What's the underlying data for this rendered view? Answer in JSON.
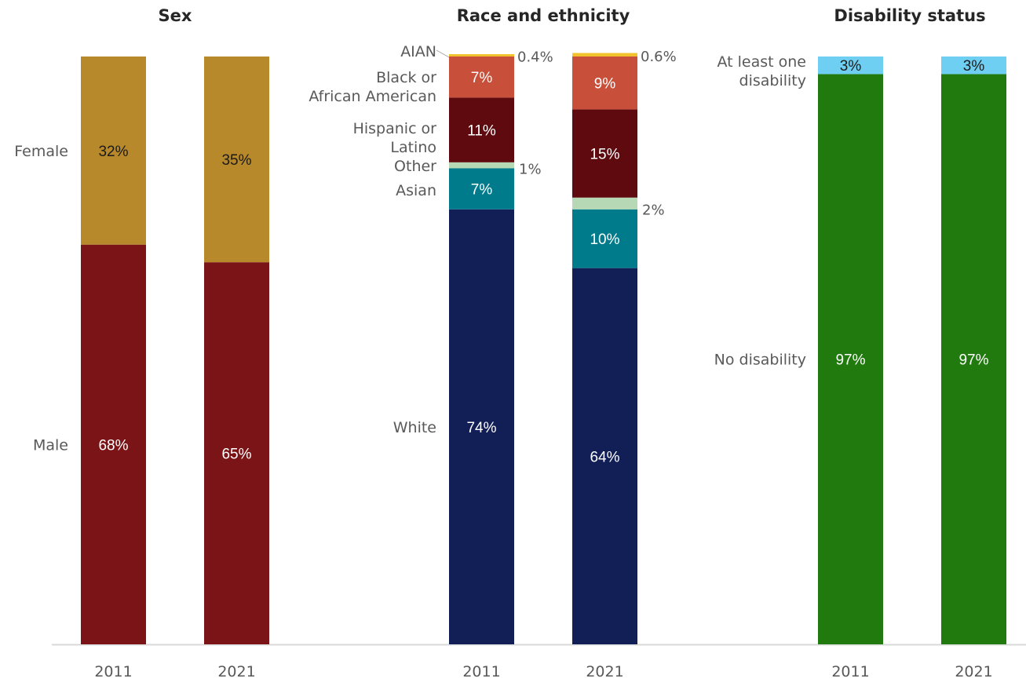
{
  "chart_data": [
    {
      "type": "bar",
      "stacked": true,
      "title": "Sex",
      "categories": [
        "2011",
        "2021"
      ],
      "series": [
        {
          "name": "Male",
          "values": [
            68,
            65
          ],
          "labels": [
            "68%",
            "65%"
          ],
          "color": "#7b1416",
          "text_color": "#ffffff"
        },
        {
          "name": "Female",
          "values": [
            32,
            35
          ],
          "labels": [
            "32%",
            "35%"
          ],
          "color": "#b8892a",
          "text_color": "#1a1a1a"
        }
      ],
      "ylim": [
        0,
        100
      ]
    },
    {
      "type": "bar",
      "stacked": true,
      "title": "Race and ethnicity",
      "categories": [
        "2011",
        "2021"
      ],
      "series": [
        {
          "name": "White",
          "values": [
            74,
            64
          ],
          "labels": [
            "74%",
            "64%"
          ],
          "color": "#121f57",
          "text_color": "#ffffff"
        },
        {
          "name": "Asian",
          "values": [
            7,
            10
          ],
          "labels": [
            "7%",
            "10%"
          ],
          "color": "#007b8c",
          "text_color": "#ffffff"
        },
        {
          "name": "Other",
          "values": [
            1,
            2
          ],
          "labels": [
            "1%",
            "2%"
          ],
          "color": "#b7d8b5",
          "text_color": "#595959",
          "label_outside": true
        },
        {
          "name": "Hispanic or Latino",
          "values": [
            11,
            15
          ],
          "labels": [
            "11%",
            "15%"
          ],
          "color": "#5e0a0f",
          "text_color": "#ffffff"
        },
        {
          "name": "Black or African American",
          "values": [
            7,
            9
          ],
          "labels": [
            "7%",
            "9%"
          ],
          "color": "#c8503a",
          "text_color": "#ffffff"
        },
        {
          "name": "AIAN",
          "values": [
            0.4,
            0.6
          ],
          "labels": [
            "0.4%",
            "0.6%"
          ],
          "color": "#f2c12e",
          "text_color": "#595959",
          "label_outside": true
        }
      ],
      "ylim": [
        0,
        100
      ]
    },
    {
      "type": "bar",
      "stacked": true,
      "title": "Disability status",
      "categories": [
        "2011",
        "2021"
      ],
      "series": [
        {
          "name": "No disability",
          "values": [
            97,
            97
          ],
          "labels": [
            "97%",
            "97%"
          ],
          "color": "#217a0e",
          "text_color": "#ffffff"
        },
        {
          "name": "At least one disability",
          "values": [
            3,
            3
          ],
          "labels": [
            "3%",
            "3%"
          ],
          "color": "#6fcff2",
          "text_color": "#1a1a1a"
        }
      ],
      "ylim": [
        0,
        100
      ]
    }
  ],
  "axis_color": "#d9d9d9"
}
